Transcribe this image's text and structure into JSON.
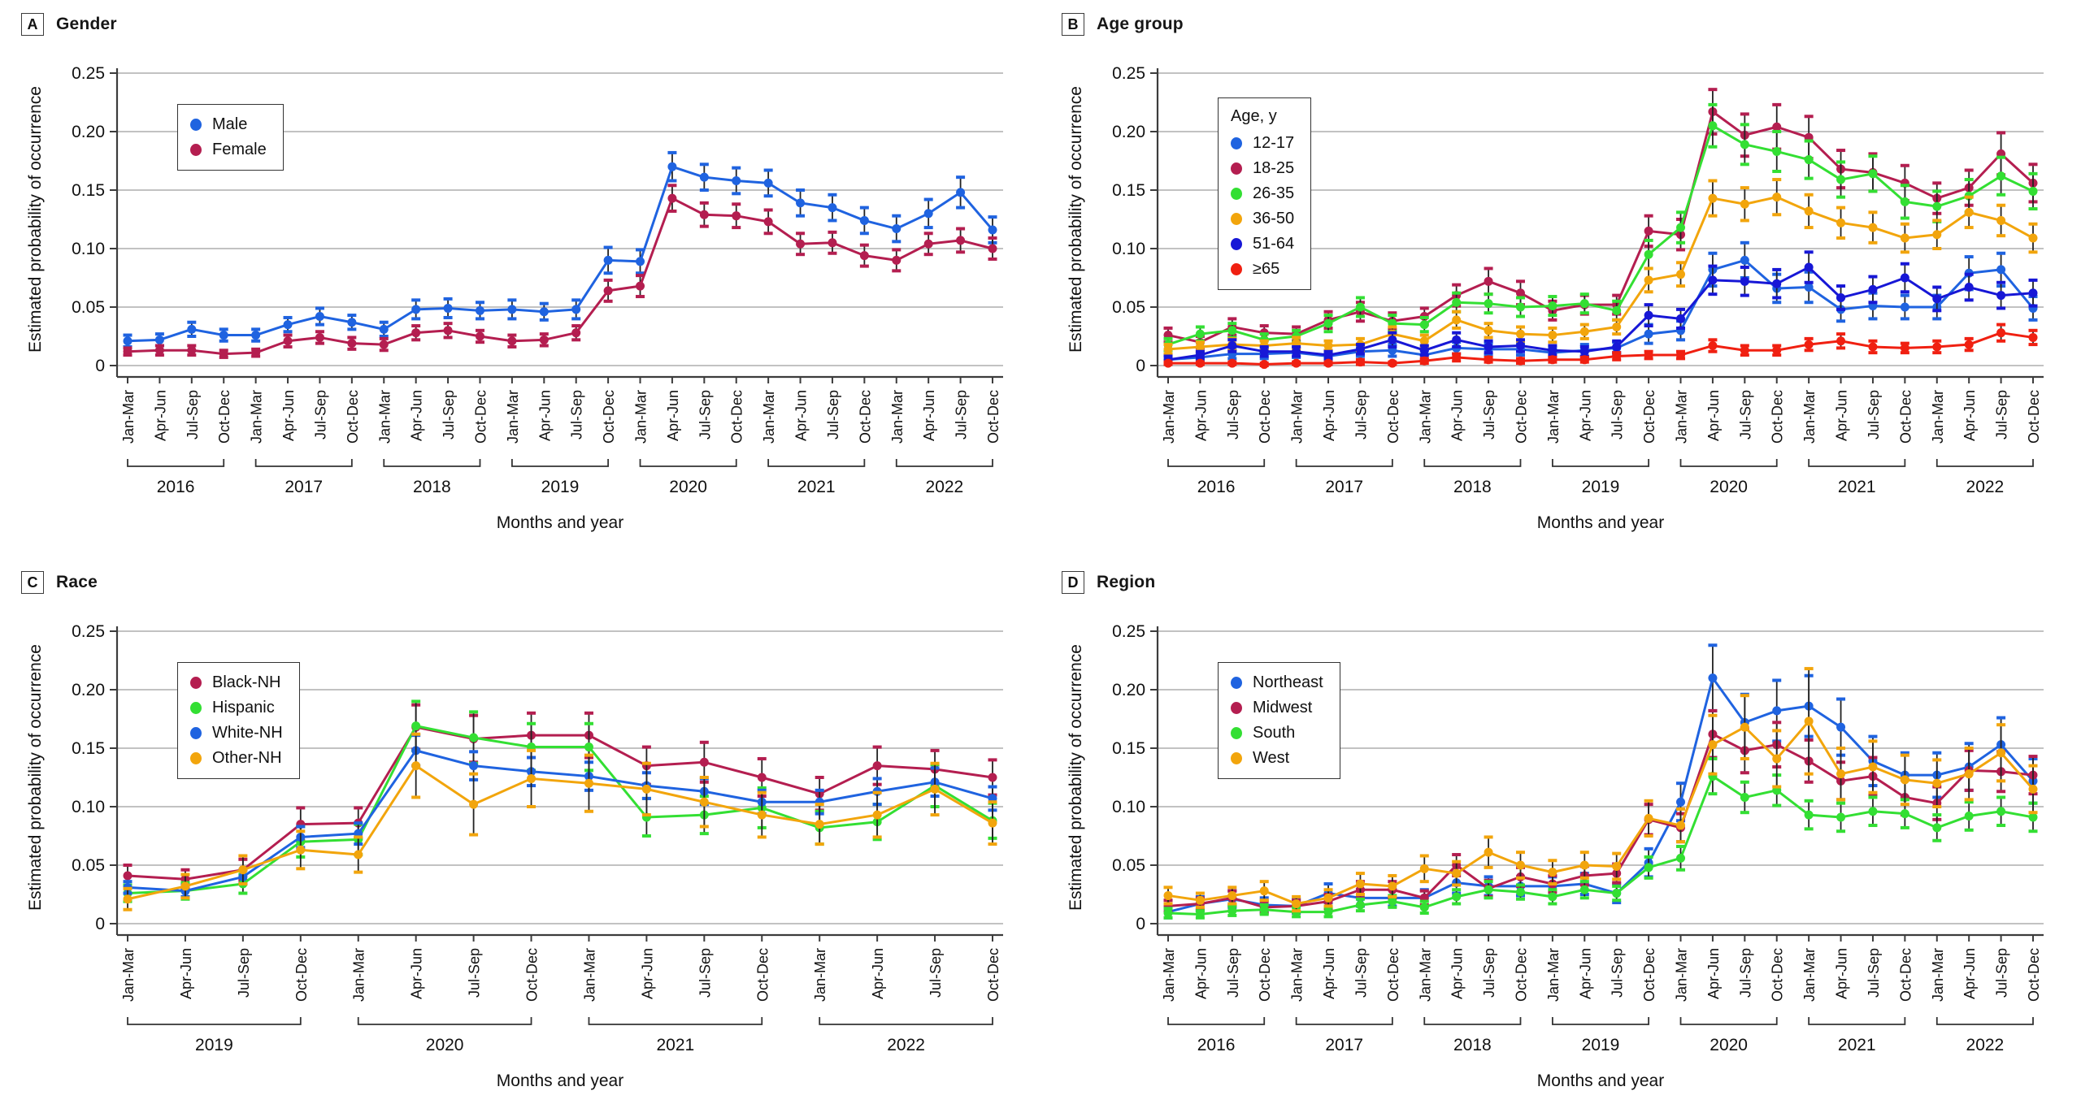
{
  "shared": {
    "y_axis_label": "Estimated probability of occurrence",
    "x_axis_label": "Months and year",
    "quarter_labels": [
      "Jan-Mar",
      "Apr-Jun",
      "Jul-Sep",
      "Oct-Dec"
    ],
    "y_tick_labels": [
      "0",
      "0.05",
      "0.10",
      "0.15",
      "0.20",
      "0.25"
    ],
    "ylim": [
      0,
      0.25
    ],
    "grid": "horizontal-on",
    "colors": {
      "blue": "#1f63e0",
      "crimson": "#b41e50",
      "green": "#33df33",
      "orange": "#f2a50c",
      "navy": "#1717d6",
      "red": "#f02011",
      "grid": "#b9b9b9",
      "axis": "#3c3c3c",
      "errbar": "#222222"
    }
  },
  "chart_data": [
    {
      "panel": "A",
      "letter": "A",
      "title": "Gender",
      "type": "line",
      "legend_title": "",
      "legend_position": "upper-left-inside",
      "years": [
        2016,
        2017,
        2018,
        2019,
        2020,
        2021,
        2022
      ],
      "series": [
        {
          "name": "Male",
          "color_key": "blue",
          "values": [
            0.021,
            0.022,
            0.031,
            0.026,
            0.026,
            0.035,
            0.042,
            0.037,
            0.031,
            0.048,
            0.049,
            0.047,
            0.048,
            0.046,
            0.048,
            0.09,
            0.089,
            0.17,
            0.161,
            0.158,
            0.156,
            0.139,
            0.135,
            0.124,
            0.117,
            0.13,
            0.148,
            0.116
          ],
          "err": [
            0.005,
            0.005,
            0.006,
            0.005,
            0.005,
            0.006,
            0.007,
            0.006,
            0.006,
            0.008,
            0.008,
            0.007,
            0.008,
            0.007,
            0.008,
            0.011,
            0.01,
            0.012,
            0.011,
            0.011,
            0.011,
            0.011,
            0.011,
            0.011,
            0.011,
            0.012,
            0.013,
            0.011
          ]
        },
        {
          "name": "Female",
          "color_key": "crimson",
          "values": [
            0.012,
            0.013,
            0.013,
            0.01,
            0.011,
            0.021,
            0.024,
            0.019,
            0.018,
            0.028,
            0.03,
            0.025,
            0.021,
            0.022,
            0.028,
            0.064,
            0.068,
            0.143,
            0.129,
            0.128,
            0.123,
            0.104,
            0.105,
            0.094,
            0.09,
            0.104,
            0.107,
            0.1
          ],
          "err": [
            0.003,
            0.004,
            0.004,
            0.003,
            0.003,
            0.005,
            0.005,
            0.005,
            0.005,
            0.006,
            0.006,
            0.005,
            0.005,
            0.005,
            0.006,
            0.009,
            0.009,
            0.011,
            0.01,
            0.01,
            0.01,
            0.009,
            0.009,
            0.009,
            0.009,
            0.009,
            0.01,
            0.009
          ]
        }
      ]
    },
    {
      "panel": "B",
      "letter": "B",
      "title": "Age group",
      "type": "line",
      "legend_title": "Age, y",
      "legend_position": "upper-left-inside",
      "years": [
        2016,
        2017,
        2018,
        2019,
        2020,
        2021,
        2022
      ],
      "series": [
        {
          "name": "12-17",
          "color_key": "blue",
          "values": [
            0.005,
            0.007,
            0.01,
            0.01,
            0.011,
            0.008,
            0.012,
            0.013,
            0.009,
            0.015,
            0.014,
            0.014,
            0.011,
            0.013,
            0.015,
            0.027,
            0.03,
            0.082,
            0.09,
            0.066,
            0.067,
            0.048,
            0.051,
            0.05,
            0.05,
            0.079,
            0.082,
            0.049
          ],
          "err": [
            0.003,
            0.003,
            0.004,
            0.004,
            0.004,
            0.003,
            0.004,
            0.005,
            0.004,
            0.005,
            0.005,
            0.005,
            0.004,
            0.005,
            0.005,
            0.008,
            0.008,
            0.014,
            0.015,
            0.012,
            0.013,
            0.01,
            0.011,
            0.01,
            0.01,
            0.014,
            0.014,
            0.01
          ]
        },
        {
          "name": "18-25",
          "color_key": "crimson",
          "values": [
            0.026,
            0.02,
            0.033,
            0.028,
            0.027,
            0.039,
            0.046,
            0.038,
            0.042,
            0.06,
            0.072,
            0.062,
            0.047,
            0.052,
            0.052,
            0.115,
            0.112,
            0.217,
            0.197,
            0.204,
            0.195,
            0.168,
            0.165,
            0.156,
            0.143,
            0.152,
            0.181,
            0.156
          ],
          "err": [
            0.006,
            0.005,
            0.007,
            0.006,
            0.006,
            0.007,
            0.008,
            0.007,
            0.007,
            0.009,
            0.011,
            0.01,
            0.008,
            0.008,
            0.008,
            0.013,
            0.013,
            0.019,
            0.018,
            0.019,
            0.018,
            0.016,
            0.016,
            0.015,
            0.013,
            0.015,
            0.018,
            0.016
          ]
        },
        {
          "name": "26-35",
          "color_key": "green",
          "values": [
            0.018,
            0.027,
            0.03,
            0.022,
            0.025,
            0.036,
            0.05,
            0.036,
            0.035,
            0.054,
            0.053,
            0.05,
            0.051,
            0.053,
            0.047,
            0.095,
            0.118,
            0.205,
            0.189,
            0.183,
            0.176,
            0.159,
            0.164,
            0.14,
            0.136,
            0.145,
            0.162,
            0.149
          ],
          "err": [
            0.005,
            0.006,
            0.006,
            0.005,
            0.005,
            0.007,
            0.008,
            0.007,
            0.006,
            0.008,
            0.008,
            0.008,
            0.008,
            0.008,
            0.008,
            0.012,
            0.013,
            0.018,
            0.017,
            0.017,
            0.016,
            0.015,
            0.015,
            0.014,
            0.013,
            0.014,
            0.016,
            0.015
          ]
        },
        {
          "name": "36-50",
          "color_key": "orange",
          "values": [
            0.014,
            0.016,
            0.018,
            0.017,
            0.019,
            0.017,
            0.018,
            0.027,
            0.021,
            0.039,
            0.03,
            0.027,
            0.026,
            0.029,
            0.033,
            0.073,
            0.078,
            0.143,
            0.138,
            0.144,
            0.132,
            0.122,
            0.118,
            0.109,
            0.112,
            0.131,
            0.124,
            0.109
          ],
          "err": [
            0.004,
            0.004,
            0.005,
            0.004,
            0.005,
            0.004,
            0.005,
            0.006,
            0.005,
            0.007,
            0.006,
            0.006,
            0.006,
            0.006,
            0.006,
            0.01,
            0.01,
            0.015,
            0.014,
            0.015,
            0.014,
            0.013,
            0.013,
            0.012,
            0.012,
            0.013,
            0.013,
            0.012
          ]
        },
        {
          "name": "51-64",
          "color_key": "navy",
          "values": [
            0.005,
            0.009,
            0.017,
            0.012,
            0.012,
            0.009,
            0.014,
            0.022,
            0.013,
            0.022,
            0.016,
            0.017,
            0.013,
            0.012,
            0.016,
            0.043,
            0.04,
            0.073,
            0.072,
            0.07,
            0.084,
            0.058,
            0.065,
            0.075,
            0.057,
            0.067,
            0.06,
            0.062
          ],
          "err": [
            0.003,
            0.003,
            0.005,
            0.004,
            0.004,
            0.003,
            0.004,
            0.006,
            0.004,
            0.006,
            0.005,
            0.005,
            0.004,
            0.004,
            0.005,
            0.009,
            0.008,
            0.012,
            0.012,
            0.012,
            0.013,
            0.01,
            0.011,
            0.012,
            0.01,
            0.011,
            0.011,
            0.011
          ]
        },
        {
          "name": "≥65",
          "color_key": "red",
          "values": [
            0.002,
            0.002,
            0.002,
            0.001,
            0.002,
            0.002,
            0.003,
            0.002,
            0.004,
            0.007,
            0.005,
            0.004,
            0.005,
            0.005,
            0.008,
            0.009,
            0.009,
            0.017,
            0.013,
            0.013,
            0.018,
            0.021,
            0.016,
            0.015,
            0.016,
            0.018,
            0.028,
            0.024
          ],
          "err": [
            0.001,
            0.001,
            0.001,
            0.001,
            0.001,
            0.001,
            0.002,
            0.001,
            0.002,
            0.003,
            0.002,
            0.002,
            0.002,
            0.002,
            0.003,
            0.003,
            0.003,
            0.005,
            0.004,
            0.004,
            0.005,
            0.006,
            0.005,
            0.004,
            0.005,
            0.005,
            0.007,
            0.006
          ]
        }
      ]
    },
    {
      "panel": "C",
      "letter": "C",
      "title": "Race",
      "type": "line",
      "legend_title": "",
      "legend_position": "upper-left-inside",
      "years": [
        2019,
        2020,
        2021,
        2022
      ],
      "series": [
        {
          "name": "Black-NH",
          "color_key": "crimson",
          "values": [
            0.041,
            0.038,
            0.046,
            0.085,
            0.086,
            0.168,
            0.158,
            0.161,
            0.161,
            0.135,
            0.138,
            0.125,
            0.111,
            0.135,
            0.132,
            0.125
          ],
          "err": [
            0.009,
            0.008,
            0.009,
            0.014,
            0.013,
            0.019,
            0.02,
            0.019,
            0.019,
            0.016,
            0.017,
            0.016,
            0.014,
            0.016,
            0.016,
            0.015
          ]
        },
        {
          "name": "Hispanic",
          "color_key": "green",
          "values": [
            0.026,
            0.028,
            0.034,
            0.07,
            0.072,
            0.169,
            0.159,
            0.151,
            0.151,
            0.091,
            0.093,
            0.099,
            0.082,
            0.087,
            0.118,
            0.088
          ],
          "err": [
            0.007,
            0.007,
            0.008,
            0.013,
            0.013,
            0.021,
            0.022,
            0.02,
            0.02,
            0.016,
            0.016,
            0.017,
            0.014,
            0.015,
            0.018,
            0.015
          ]
        },
        {
          "name": "White-NH",
          "color_key": "blue",
          "values": [
            0.031,
            0.028,
            0.04,
            0.074,
            0.077,
            0.148,
            0.135,
            0.13,
            0.126,
            0.118,
            0.113,
            0.104,
            0.104,
            0.113,
            0.121,
            0.107
          ],
          "err": [
            0.005,
            0.005,
            0.006,
            0.009,
            0.009,
            0.013,
            0.012,
            0.012,
            0.012,
            0.011,
            0.011,
            0.01,
            0.01,
            0.011,
            0.012,
            0.01
          ]
        },
        {
          "name": "Other-NH",
          "color_key": "orange",
          "values": [
            0.021,
            0.032,
            0.046,
            0.063,
            0.059,
            0.135,
            0.102,
            0.124,
            0.12,
            0.115,
            0.104,
            0.093,
            0.085,
            0.093,
            0.115,
            0.086
          ],
          "err": [
            0.009,
            0.01,
            0.012,
            0.016,
            0.015,
            0.027,
            0.026,
            0.024,
            0.024,
            0.022,
            0.021,
            0.019,
            0.017,
            0.019,
            0.022,
            0.018
          ]
        }
      ]
    },
    {
      "panel": "D",
      "letter": "D",
      "title": "Region",
      "type": "line",
      "legend_title": "",
      "legend_position": "upper-left-inside",
      "years": [
        2016,
        2017,
        2018,
        2019,
        2020,
        2021,
        2022
      ],
      "series": [
        {
          "name": "Northeast",
          "color_key": "blue",
          "values": [
            0.01,
            0.017,
            0.021,
            0.016,
            0.015,
            0.026,
            0.022,
            0.022,
            0.022,
            0.035,
            0.032,
            0.032,
            0.032,
            0.034,
            0.026,
            0.052,
            0.104,
            0.21,
            0.172,
            0.182,
            0.186,
            0.168,
            0.139,
            0.127,
            0.127,
            0.134,
            0.153,
            0.122
          ],
          "err": [
            0.005,
            0.006,
            0.007,
            0.006,
            0.006,
            0.008,
            0.007,
            0.007,
            0.007,
            0.009,
            0.008,
            0.008,
            0.008,
            0.009,
            0.008,
            0.012,
            0.016,
            0.028,
            0.024,
            0.026,
            0.026,
            0.024,
            0.021,
            0.019,
            0.019,
            0.02,
            0.023,
            0.019
          ]
        },
        {
          "name": "Midwest",
          "color_key": "crimson",
          "values": [
            0.015,
            0.017,
            0.022,
            0.014,
            0.015,
            0.019,
            0.029,
            0.029,
            0.022,
            0.05,
            0.03,
            0.04,
            0.034,
            0.041,
            0.043,
            0.089,
            0.082,
            0.162,
            0.148,
            0.153,
            0.139,
            0.122,
            0.126,
            0.108,
            0.103,
            0.131,
            0.13,
            0.127
          ],
          "err": [
            0.005,
            0.005,
            0.006,
            0.005,
            0.005,
            0.006,
            0.007,
            0.007,
            0.006,
            0.009,
            0.007,
            0.008,
            0.007,
            0.008,
            0.008,
            0.013,
            0.012,
            0.02,
            0.019,
            0.019,
            0.018,
            0.016,
            0.016,
            0.015,
            0.014,
            0.017,
            0.017,
            0.016
          ]
        },
        {
          "name": "South",
          "color_key": "green",
          "values": [
            0.009,
            0.008,
            0.011,
            0.012,
            0.01,
            0.01,
            0.016,
            0.019,
            0.014,
            0.023,
            0.029,
            0.027,
            0.023,
            0.029,
            0.026,
            0.048,
            0.056,
            0.126,
            0.108,
            0.114,
            0.093,
            0.091,
            0.096,
            0.094,
            0.082,
            0.092,
            0.096,
            0.091
          ],
          "err": [
            0.004,
            0.003,
            0.004,
            0.004,
            0.004,
            0.004,
            0.005,
            0.005,
            0.005,
            0.006,
            0.007,
            0.006,
            0.006,
            0.007,
            0.006,
            0.009,
            0.01,
            0.015,
            0.013,
            0.013,
            0.012,
            0.012,
            0.012,
            0.012,
            0.011,
            0.012,
            0.012,
            0.012
          ]
        },
        {
          "name": "West",
          "color_key": "orange",
          "values": [
            0.024,
            0.02,
            0.024,
            0.028,
            0.017,
            0.022,
            0.034,
            0.032,
            0.047,
            0.043,
            0.061,
            0.05,
            0.044,
            0.05,
            0.049,
            0.09,
            0.084,
            0.153,
            0.168,
            0.141,
            0.173,
            0.128,
            0.134,
            0.123,
            0.12,
            0.128,
            0.146,
            0.115
          ],
          "err": [
            0.007,
            0.006,
            0.007,
            0.008,
            0.006,
            0.007,
            0.009,
            0.009,
            0.011,
            0.01,
            0.013,
            0.011,
            0.01,
            0.011,
            0.011,
            0.015,
            0.014,
            0.025,
            0.027,
            0.024,
            0.045,
            0.022,
            0.022,
            0.021,
            0.02,
            0.022,
            0.024,
            0.02
          ]
        }
      ]
    }
  ]
}
